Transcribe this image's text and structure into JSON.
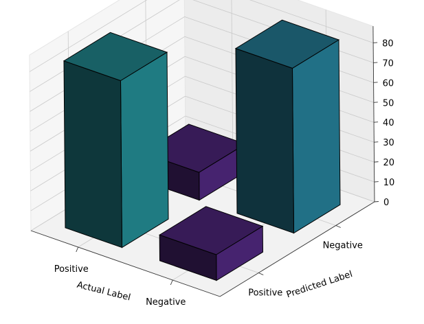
{
  "chart_data": {
    "type": "bar3d",
    "title": "",
    "xlabel": "Actual Label",
    "ylabel": "Predicted Label",
    "x_categories": [
      "Positive",
      "Negative"
    ],
    "y_categories": [
      "Positive",
      "Negative"
    ],
    "zticks": [
      0,
      10,
      20,
      30,
      40,
      50,
      60,
      70,
      80
    ],
    "zlim": [
      0,
      85
    ],
    "bars": [
      {
        "actual": "Positive",
        "predicted": "Positive",
        "value": 84,
        "color": "#1f7b82"
      },
      {
        "actual": "Negative",
        "predicted": "Positive",
        "value": 13,
        "color": "#46236f"
      },
      {
        "actual": "Positive",
        "predicted": "Negative",
        "value": 14,
        "color": "#46236f"
      },
      {
        "actual": "Negative",
        "predicted": "Negative",
        "value": 83,
        "color": "#217086"
      }
    ]
  }
}
